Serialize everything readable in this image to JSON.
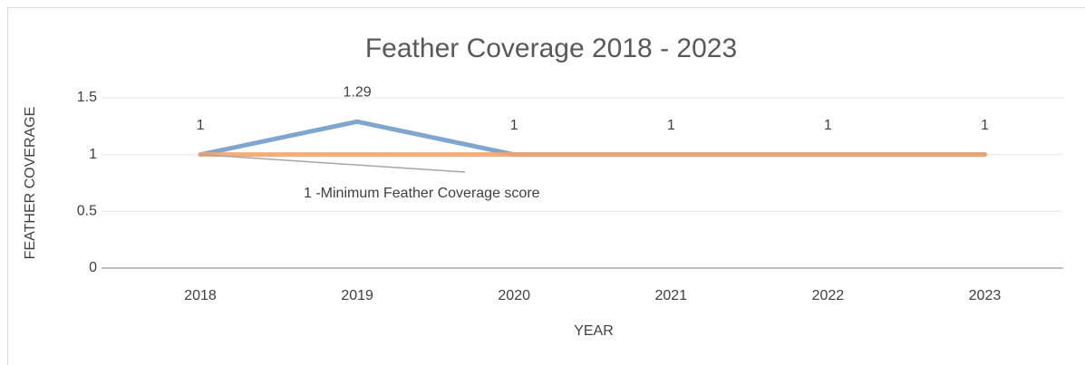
{
  "chart_data": {
    "type": "line",
    "title": "Feather Coverage 2018 - 2023",
    "x_label": "YEAR",
    "y_label": "FEATHER COVERAGE",
    "categories": [
      "2018",
      "2019",
      "2020",
      "2021",
      "2022",
      "2023"
    ],
    "series": [
      {
        "color": "#7ea6cf",
        "values": [
          1,
          1.29,
          1,
          1,
          1,
          1
        ]
      },
      {
        "color": "#f4a46a",
        "values": [
          1,
          1,
          1,
          1,
          1,
          1
        ]
      }
    ],
    "annotation": "1 -Minimum Feather Coverage score",
    "ylim": [
      0,
      1.5
    ],
    "yticks": [
      0,
      0.5,
      1,
      1.5
    ],
    "grid": true
  }
}
